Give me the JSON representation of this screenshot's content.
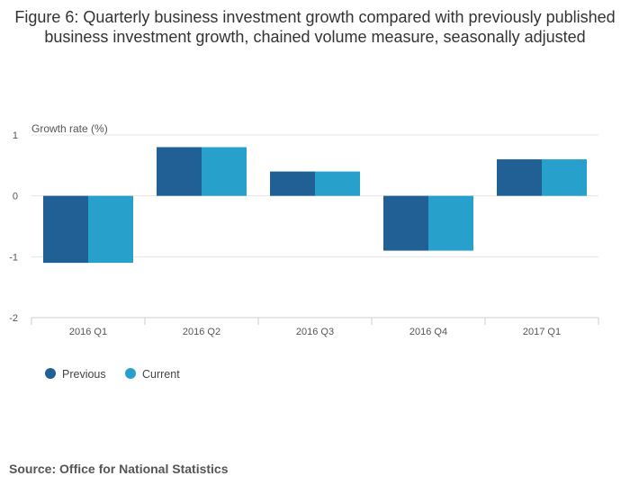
{
  "chart_data": {
    "type": "bar",
    "title": "Figure 6: Quarterly business investment growth compared with previously published business investment growth, chained volume measure, seasonally adjusted",
    "ylabel": "Growth rate (%)",
    "xlabel": "",
    "categories": [
      "2016 Q1",
      "2016 Q2",
      "2016 Q3",
      "2016 Q4",
      "2017 Q1"
    ],
    "series": [
      {
        "name": "Previous",
        "values": [
          -1.1,
          0.8,
          0.4,
          -0.9,
          0.6
        ],
        "color": "#206095"
      },
      {
        "name": "Current",
        "values": [
          -1.1,
          0.8,
          0.4,
          -0.9,
          0.6
        ],
        "color": "#27a0cc"
      }
    ],
    "ylim": [
      -2,
      1
    ],
    "yticks": [
      "1",
      "0",
      "-1",
      "-2"
    ],
    "grid": true,
    "legend_position": "bottom-left"
  },
  "source": "Source: Office for National Statistics"
}
